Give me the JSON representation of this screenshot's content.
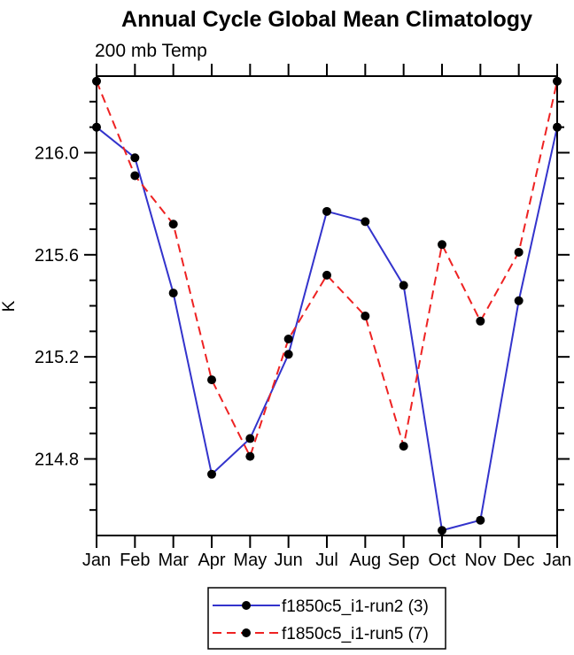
{
  "chart_data": {
    "type": "line",
    "title": "Annual Cycle Global Mean Climatology",
    "subtitle": "200 mb Temp",
    "ylabel": "K",
    "categories": [
      "Jan",
      "Feb",
      "Mar",
      "Apr",
      "May",
      "Jun",
      "Jul",
      "Aug",
      "Sep",
      "Oct",
      "Nov",
      "Dec",
      "Jan"
    ],
    "series": [
      {
        "name": "f1850c5_i1-run2 (3)",
        "line_color": "#3333cc",
        "line_style": "solid",
        "marker": "filled-circle",
        "marker_color": "#000000",
        "values": [
          216.1,
          215.98,
          215.45,
          214.74,
          214.88,
          215.21,
          215.77,
          215.73,
          215.48,
          214.52,
          214.56,
          215.42,
          216.1
        ]
      },
      {
        "name": "f1850c5_i1-run5 (7)",
        "line_color": "#ee2222",
        "line_style": "dashed",
        "marker": "filled-circle",
        "marker_color": "#000000",
        "values": [
          216.28,
          215.91,
          215.72,
          215.11,
          214.81,
          215.27,
          215.52,
          215.36,
          214.85,
          215.64,
          215.34,
          215.61,
          216.28
        ]
      }
    ],
    "ylim": [
      214.5,
      216.3
    ],
    "yticks_major": [
      214.8,
      215.2,
      215.6,
      216.0
    ],
    "ytick_labels": [
      "214.8",
      "215.2",
      "215.6",
      "216.0"
    ],
    "ytick_minor_step": 0.1,
    "grid": false,
    "legend_position": "bottom-center",
    "axis_color": "#000000"
  }
}
